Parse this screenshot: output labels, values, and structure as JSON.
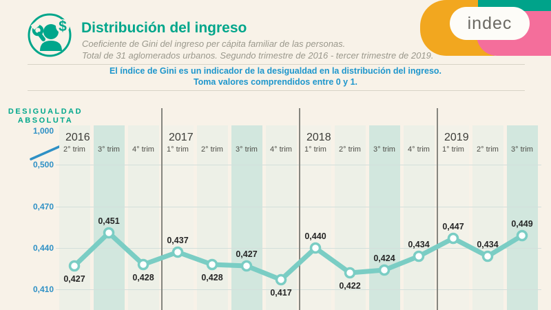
{
  "header": {
    "title": "Distribución del ingreso",
    "subtitle_line1": "Coeficiente de Gini del ingreso per cápita familiar de las personas.",
    "subtitle_line2": "Total de 31 aglomerados urbanos. Segundo trimestre de 2016 - tercer trimestre de 2019.",
    "icon": "person-wrench-dollar-icon"
  },
  "logo": {
    "text": "indec"
  },
  "info_banner": {
    "line1": "El índice de Gini es un indicador de la desigualdad en la distribución del ingreso.",
    "line2": "Toma valores comprendidos entre 0 y 1."
  },
  "chart_data": {
    "type": "line",
    "y_axis": {
      "title_line1": "DESIGUALDAD",
      "title_line2": "ABSOLUTA",
      "ticks": [
        "1,000",
        "0,500",
        "0,470",
        "0,440",
        "0,410"
      ],
      "tick_values": [
        1.0,
        0.5,
        0.47,
        0.44,
        0.41
      ],
      "axis_break_between": [
        "1,000",
        "0,500"
      ],
      "plotted_range": [
        0.41,
        0.47
      ]
    },
    "years": [
      {
        "label": "2016",
        "quarters": [
          "2° trim",
          "3° trim",
          "4° trim"
        ]
      },
      {
        "label": "2017",
        "quarters": [
          "1° trim",
          "2° trim",
          "3° trim",
          "4° trim"
        ]
      },
      {
        "label": "2018",
        "quarters": [
          "1° trim",
          "2° trim",
          "3° trim",
          "4° trim"
        ]
      },
      {
        "label": "2019",
        "quarters": [
          "1° trim",
          "2° trim",
          "3° trim"
        ]
      }
    ],
    "values": [
      0.427,
      0.451,
      0.428,
      0.437,
      0.428,
      0.427,
      0.417,
      0.44,
      0.422,
      0.424,
      0.434,
      0.447,
      0.434,
      0.449
    ],
    "point_labels": [
      "0,427",
      "0,451",
      "0,428",
      "0,437",
      "0,428",
      "0,427",
      "0,417",
      "0,440",
      "0,422",
      "0,424",
      "0,434",
      "0,447",
      "0,434",
      "0,449"
    ],
    "label_positions": [
      "below",
      "above",
      "below",
      "above",
      "below",
      "above",
      "below",
      "above",
      "below",
      "above",
      "above",
      "above",
      "above",
      "above"
    ],
    "legend": "none",
    "grid": "horizontal"
  },
  "colors": {
    "background": "#f8f2e8",
    "accent_teal": "#00a68b",
    "line_teal": "#7acdc4",
    "band_teal": "#d2e7de",
    "band_light": "#edf0e7",
    "band_cream": "#f3f2e9",
    "info_blue": "#1e96cc",
    "axis_blue": "#2e90c5",
    "logo_yellow": "#f2a71f",
    "logo_teal": "#00a38a",
    "logo_pink": "#f46e9b"
  }
}
